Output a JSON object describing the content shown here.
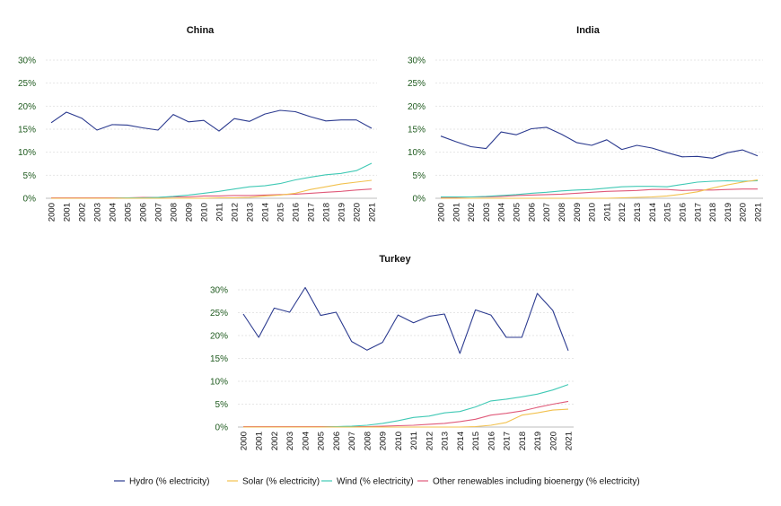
{
  "colors": {
    "hydro": "#2b3a8f",
    "solar": "#f2c14e",
    "wind": "#40c9b5",
    "other": "#e05a7a",
    "grid": "#e6e6e6",
    "ytick": "#1e5a1e"
  },
  "legend": [
    "Hydro (% electricity)",
    "Solar (% electricity)",
    "Wind (% electricity)",
    "Other renewables including bioenergy (% electricity)"
  ],
  "chart_data": [
    {
      "type": "line",
      "title": "China",
      "x": [
        "2000",
        "2001",
        "2002",
        "2003",
        "2004",
        "2005",
        "2006",
        "2007",
        "2008",
        "2009",
        "2010",
        "2011",
        "2012",
        "2013",
        "2014",
        "2015",
        "2016",
        "2017",
        "2018",
        "2019",
        "2020",
        "2021"
      ],
      "yticks": [
        "0%",
        "5%",
        "10%",
        "15%",
        "20%",
        "25%",
        "30%"
      ],
      "ylim": [
        0,
        30
      ],
      "grid": true,
      "series": [
        {
          "name": "Hydro (% electricity)",
          "values": [
            16.4,
            18.7,
            17.4,
            14.8,
            16.0,
            15.9,
            15.3,
            14.8,
            18.2,
            16.6,
            16.9,
            14.6,
            17.3,
            16.7,
            18.3,
            19.1,
            18.8,
            17.7,
            16.8,
            17.0,
            17.0,
            15.2
          ]
        },
        {
          "name": "Solar (% electricity)",
          "values": [
            0,
            0,
            0,
            0,
            0,
            0,
            0,
            0,
            0,
            0,
            0,
            0.1,
            0.1,
            0.2,
            0.5,
            0.7,
            1.1,
            1.9,
            2.5,
            3.1,
            3.5,
            3.9
          ]
        },
        {
          "name": "Wind (% electricity)",
          "values": [
            0,
            0,
            0,
            0,
            0,
            0.1,
            0.1,
            0.2,
            0.4,
            0.7,
            1.1,
            1.5,
            2.0,
            2.5,
            2.7,
            3.2,
            4.0,
            4.6,
            5.1,
            5.4,
            6.0,
            7.6
          ]
        },
        {
          "name": "Other renewables including bioenergy (% electricity)",
          "values": [
            0.1,
            0.1,
            0.1,
            0.1,
            0.1,
            0.1,
            0.2,
            0.2,
            0.3,
            0.3,
            0.5,
            0.5,
            0.6,
            0.6,
            0.7,
            0.8,
            0.9,
            1.1,
            1.3,
            1.5,
            1.8,
            2.0
          ]
        }
      ]
    },
    {
      "type": "line",
      "title": "India",
      "x": [
        "2000",
        "2001",
        "2002",
        "2003",
        "2004",
        "2005",
        "2006",
        "2007",
        "2008",
        "2009",
        "2010",
        "2011",
        "2012",
        "2013",
        "2014",
        "2015",
        "2016",
        "2017",
        "2018",
        "2019",
        "2020",
        "2021"
      ],
      "yticks": [
        "0%",
        "5%",
        "10%",
        "15%",
        "20%",
        "25%",
        "30%"
      ],
      "ylim": [
        0,
        30
      ],
      "grid": true,
      "series": [
        {
          "name": "Hydro (% electricity)",
          "values": [
            13.5,
            12.3,
            11.2,
            10.8,
            14.4,
            13.8,
            15.1,
            15.4,
            13.9,
            12.1,
            11.5,
            12.7,
            10.6,
            11.5,
            10.9,
            9.9,
            9.0,
            9.1,
            8.7,
            9.9,
            10.5,
            9.2
          ]
        },
        {
          "name": "Solar (% electricity)",
          "values": [
            0,
            0,
            0,
            0,
            0,
            0,
            0,
            0,
            0,
            0,
            0,
            0,
            0.1,
            0.2,
            0.3,
            0.5,
            0.9,
            1.4,
            2.2,
            2.9,
            3.5,
            4.0
          ]
        },
        {
          "name": "Wind (% electricity)",
          "values": [
            0.3,
            0.3,
            0.3,
            0.4,
            0.6,
            0.8,
            1.1,
            1.3,
            1.6,
            1.8,
            1.9,
            2.2,
            2.5,
            2.6,
            2.6,
            2.5,
            3.0,
            3.5,
            3.7,
            3.8,
            3.7,
            3.8
          ]
        },
        {
          "name": "Other renewables including bioenergy (% electricity)",
          "values": [
            0.2,
            0.2,
            0.3,
            0.3,
            0.4,
            0.6,
            0.7,
            0.8,
            0.9,
            1.1,
            1.3,
            1.5,
            1.6,
            1.7,
            1.9,
            1.9,
            1.7,
            1.8,
            1.8,
            1.9,
            2.0,
            2.0
          ]
        }
      ]
    },
    {
      "type": "line",
      "title": "Turkey",
      "x": [
        "2000",
        "2001",
        "2002",
        "2003",
        "2004",
        "2005",
        "2006",
        "2007",
        "2008",
        "2009",
        "2010",
        "2011",
        "2012",
        "2013",
        "2014",
        "2015",
        "2016",
        "2017",
        "2018",
        "2019",
        "2020",
        "2021"
      ],
      "yticks": [
        "0%",
        "5%",
        "10%",
        "15%",
        "20%",
        "25%",
        "30%"
      ],
      "ylim": [
        0,
        30
      ],
      "grid": true,
      "series": [
        {
          "name": "Hydro (% electricity)",
          "values": [
            24.7,
            19.6,
            26.0,
            25.1,
            30.5,
            24.4,
            25.1,
            18.7,
            16.8,
            18.5,
            24.5,
            22.8,
            24.2,
            24.7,
            16.1,
            25.6,
            24.5,
            19.6,
            19.6,
            29.2,
            25.5,
            16.7
          ]
        },
        {
          "name": "Solar (% electricity)",
          "values": [
            0,
            0,
            0,
            0,
            0,
            0,
            0,
            0,
            0,
            0,
            0,
            0,
            0,
            0,
            0,
            0.1,
            0.4,
            1.0,
            2.6,
            3.1,
            3.7,
            3.9
          ]
        },
        {
          "name": "Wind (% electricity)",
          "values": [
            0,
            0,
            0,
            0,
            0,
            0,
            0.1,
            0.2,
            0.4,
            0.8,
            1.4,
            2.1,
            2.4,
            3.1,
            3.4,
            4.4,
            5.7,
            6.1,
            6.6,
            7.2,
            8.1,
            9.3
          ]
        },
        {
          "name": "Other renewables including bioenergy (% electricity)",
          "values": [
            0.1,
            0.1,
            0.1,
            0.1,
            0.1,
            0.1,
            0.1,
            0.1,
            0.1,
            0.2,
            0.3,
            0.4,
            0.6,
            0.8,
            1.2,
            1.7,
            2.6,
            3.0,
            3.5,
            4.3,
            5.0,
            5.6
          ]
        }
      ]
    }
  ]
}
